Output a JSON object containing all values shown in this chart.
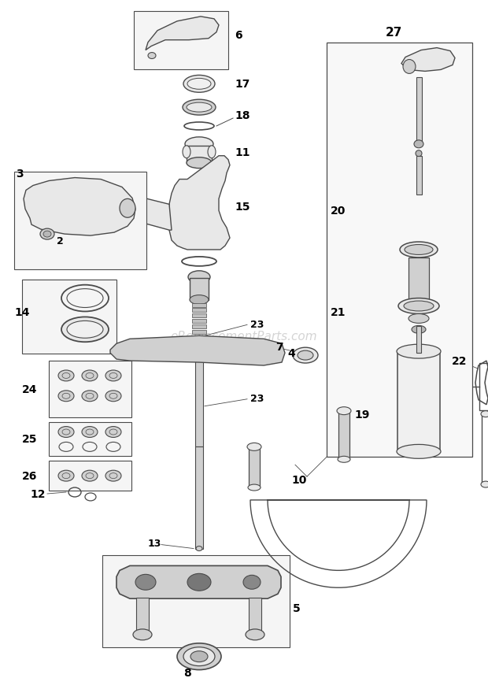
{
  "bg_color": "#ffffff",
  "line_color": "#4a4a4a",
  "fill_light": "#e8e8e8",
  "fill_mid": "#d0d0d0",
  "fill_dark": "#b8b8b8",
  "watermark": "eReplacementParts.com",
  "watermark_color": "#d0d0d0",
  "figw": 6.2,
  "figh": 8.62,
  "dpi": 100
}
